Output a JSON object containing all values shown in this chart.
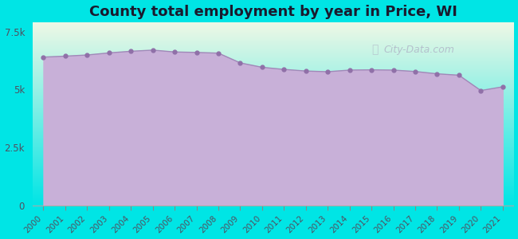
{
  "title": "County total employment by year in Price, WI",
  "title_fontsize": 13,
  "title_fontweight": "bold",
  "background_color": "#00e5e5",
  "plot_bg_top": "#f5f8f0",
  "plot_bg_bottom": "#00e5e5",
  "area_fill_color": "#c8b0d8",
  "line_color": "#a088b8",
  "marker_color": "#9070a8",
  "years": [
    2000,
    2001,
    2002,
    2003,
    2004,
    2005,
    2006,
    2007,
    2008,
    2009,
    2010,
    2011,
    2012,
    2013,
    2014,
    2015,
    2016,
    2017,
    2018,
    2019,
    2020,
    2021
  ],
  "values": [
    6400,
    6440,
    6490,
    6580,
    6650,
    6700,
    6620,
    6600,
    6570,
    6150,
    5960,
    5870,
    5800,
    5770,
    5840,
    5850,
    5840,
    5780,
    5680,
    5620,
    4960,
    5120
  ],
  "ylim": [
    0,
    7900
  ],
  "yticks": [
    0,
    2500,
    5000,
    7500
  ],
  "ytick_labels": [
    "0",
    "2.5k",
    "5k",
    "7.5k"
  ],
  "watermark_text": "City-Data.com",
  "watermark_color": "#b0b8c8",
  "title_color": "#1a1a2e",
  "tick_label_color": "#505060"
}
